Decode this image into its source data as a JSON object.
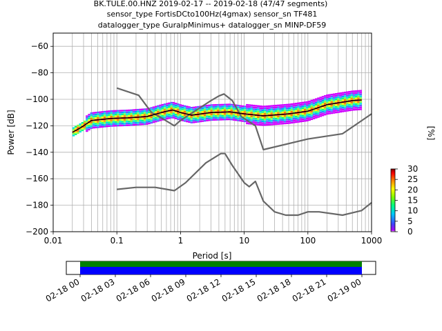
{
  "title_lines": [
    "BK.TULE.00.HNZ   2019-02-17 -- 2019-02-18  (47/47 segments)",
    "sensor_type FortisDCto100Hz(4gmax) sensor_sn TF481",
    "datalogger_type GuralpMinimus+ datalogger_sn MINP-DF59"
  ],
  "chart_data": {
    "type": "heatmap",
    "xlabel": "Period [s]",
    "ylabel": "Power [dB]",
    "xscale": "log",
    "xlim": [
      0.01,
      1000
    ],
    "ylim": [
      -200,
      -50
    ],
    "x_ticks": [
      "0.01",
      "0.1",
      "1",
      "10",
      "100",
      "1000"
    ],
    "y_ticks": [
      "−60",
      "−80",
      "−100",
      "−120",
      "−140",
      "−160",
      "−180",
      "−200"
    ],
    "grid": true,
    "colorbar": {
      "label": "[%]",
      "range": [
        0,
        30
      ],
      "ticks": [
        "0",
        "5",
        "10",
        "15",
        "20",
        "25",
        "30"
      ]
    },
    "series": [
      {
        "name": "",
        "color": "#666666",
        "x": [
          0.1,
          0.22,
          0.35,
          0.5,
          0.8,
          1.0,
          2,
          3,
          4,
          4.8,
          6.5,
          9,
          15,
          20,
          100,
          350,
          1000
        ],
        "y": [
          -91.5,
          -97,
          -110,
          -114,
          -120,
          -116,
          -106.5,
          -101,
          -97.5,
          -96,
          -101,
          -113,
          -120,
          -138,
          -130,
          -126,
          -111
        ]
      },
      {
        "name": "",
        "color": "#666666",
        "x": [
          0.1,
          0.2,
          0.4,
          0.8,
          1.2,
          2.5,
          4.3,
          5,
          6.5,
          10,
          12,
          15,
          20,
          30,
          45,
          70,
          100,
          150,
          350,
          700,
          1000
        ],
        "y": [
          -168,
          -166.5,
          -166.5,
          -169,
          -163,
          -148,
          -141,
          -141,
          -150,
          -163,
          -166,
          -162,
          -177,
          -185,
          -187.5,
          -187.5,
          -185,
          -185,
          -187.5,
          -184,
          -178
        ]
      },
      {
        "name": "",
        "color": "#000000",
        "x": [
          0.02,
          0.028,
          0.04,
          0.08,
          0.15,
          0.3,
          0.5,
          0.75,
          1,
          1.5,
          3,
          6,
          10,
          20,
          50,
          100,
          200,
          500,
          700
        ],
        "y": [
          -125,
          -121,
          -116,
          -114.5,
          -114,
          -113,
          -110,
          -108,
          -110,
          -112,
          -110,
          -109.5,
          -111,
          -112.5,
          -111,
          -109,
          -104,
          -101,
          -100.5
        ]
      }
    ],
    "density_band": {
      "x": [
        0.02,
        0.028,
        0.04,
        0.08,
        0.15,
        0.3,
        0.5,
        0.75,
        1,
        1.5,
        3,
        6,
        10,
        20,
        50,
        100,
        200,
        500,
        700
      ],
      "y": [
        -125,
        -121,
        -116,
        -114.5,
        -114,
        -113,
        -110,
        -108,
        -110,
        -112,
        -110,
        -109.5,
        -111,
        -112.5,
        -111,
        -109,
        -104,
        -101,
        -100.5
      ]
    },
    "timeline": {
      "tick_labels": [
        "02-18 00",
        "02-18 03",
        "02-18 06",
        "02-18 09",
        "02-18 12",
        "02-18 15",
        "02-18 18",
        "02-18 21",
        "02-19 00"
      ],
      "data_available_color": "#008000",
      "psd_used_color": "#0000ff"
    }
  }
}
